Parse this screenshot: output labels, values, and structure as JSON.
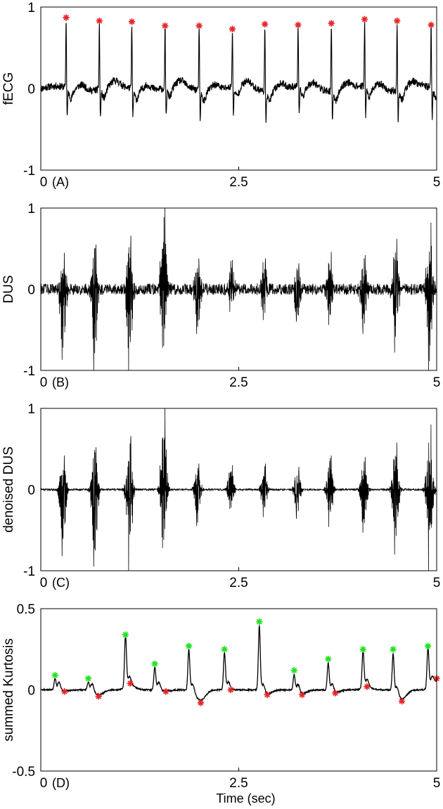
{
  "figure": {
    "xlabel_bottom": "Time (sec)"
  },
  "chart_data": [
    {
      "type": "line",
      "panel_label": "(A)",
      "ylabel": "fECG",
      "xlim": [
        0,
        5
      ],
      "ylim": [
        -1,
        1
      ],
      "xticks": [
        0,
        2.5,
        5
      ],
      "yticks": [
        -1,
        0,
        1
      ],
      "xtick_labels": [
        "0",
        "2.5",
        "5"
      ],
      "ytick_labels": [
        "-1",
        "0",
        "1"
      ],
      "signal_color": "#000000",
      "series": [
        {
          "marker": "asterisk",
          "color": "#e8262a",
          "x": [
            0.32,
            0.74,
            1.15,
            1.57,
            2.0,
            2.42,
            2.83,
            3.25,
            3.67,
            4.09,
            4.5,
            4.93
          ],
          "values": [
            0.87,
            0.83,
            0.82,
            0.77,
            0.77,
            0.73,
            0.79,
            0.78,
            0.8,
            0.85,
            0.83,
            0.78
          ]
        }
      ]
    },
    {
      "type": "line",
      "panel_label": "(B)",
      "ylabel": "DUS",
      "xlim": [
        0,
        5
      ],
      "ylim": [
        -1,
        1
      ],
      "xticks": [
        0,
        2.5,
        5
      ],
      "yticks": [
        -1,
        0,
        1
      ],
      "xtick_labels": [
        "0",
        "2.5",
        "5"
      ],
      "ytick_labels": [
        "-1",
        "0",
        "1"
      ],
      "signal_color": "#000000",
      "bursts": [
        {
          "x": 0.28,
          "pos": 0.45,
          "neg": -0.87
        },
        {
          "x": 0.68,
          "pos": 0.55,
          "neg": -1.0
        },
        {
          "x": 1.12,
          "pos": 0.66,
          "neg": -1.0
        },
        {
          "x": 1.55,
          "pos": 1.0,
          "neg": -0.72
        },
        {
          "x": 1.98,
          "pos": 0.38,
          "neg": -0.55
        },
        {
          "x": 2.4,
          "pos": 0.36,
          "neg": -0.28
        },
        {
          "x": 2.82,
          "pos": 0.38,
          "neg": -0.38
        },
        {
          "x": 3.24,
          "pos": 0.32,
          "neg": -0.4
        },
        {
          "x": 3.65,
          "pos": 0.46,
          "neg": -0.44
        },
        {
          "x": 4.08,
          "pos": 0.42,
          "neg": -0.55
        },
        {
          "x": 4.48,
          "pos": 0.62,
          "neg": -0.78
        },
        {
          "x": 4.91,
          "pos": 0.82,
          "neg": -1.0
        }
      ]
    },
    {
      "type": "line",
      "panel_label": "(C)",
      "ylabel": "denoised DUS",
      "xlim": [
        0,
        5
      ],
      "ylim": [
        -1,
        1
      ],
      "xticks": [
        0,
        2.5,
        5
      ],
      "yticks": [
        -1,
        0,
        1
      ],
      "xtick_labels": [
        "0",
        "2.5",
        "5"
      ],
      "ytick_labels": [
        "-1",
        "0",
        "1"
      ],
      "signal_color": "#000000",
      "bursts": [
        {
          "x": 0.28,
          "pos": 0.42,
          "neg": -0.82
        },
        {
          "x": 0.68,
          "pos": 0.52,
          "neg": -0.95
        },
        {
          "x": 1.12,
          "pos": 0.66,
          "neg": -1.0
        },
        {
          "x": 1.55,
          "pos": 1.0,
          "neg": -0.72
        },
        {
          "x": 1.98,
          "pos": 0.32,
          "neg": -0.45
        },
        {
          "x": 2.4,
          "pos": 0.3,
          "neg": -0.24
        },
        {
          "x": 2.82,
          "pos": 0.32,
          "neg": -0.34
        },
        {
          "x": 3.24,
          "pos": 0.28,
          "neg": -0.36
        },
        {
          "x": 3.65,
          "pos": 0.42,
          "neg": -0.46
        },
        {
          "x": 4.08,
          "pos": 0.4,
          "neg": -0.53
        },
        {
          "x": 4.48,
          "pos": 0.58,
          "neg": -0.8
        },
        {
          "x": 4.91,
          "pos": 0.8,
          "neg": -1.0
        }
      ]
    },
    {
      "type": "line",
      "panel_label": "(D)",
      "ylabel": "summed Kurtosis",
      "xlabel": "Time (sec)",
      "xlim": [
        0,
        5
      ],
      "ylim": [
        -0.5,
        0.5
      ],
      "xticks": [
        0,
        2.5,
        5
      ],
      "yticks": [
        -0.5,
        0,
        0.5
      ],
      "xtick_labels": [
        "0",
        "2.5",
        "5"
      ],
      "ytick_labels": [
        "-0.5",
        "0",
        "0.5"
      ],
      "signal_color": "#000000",
      "series": [
        {
          "marker": "asterisk",
          "color": "#1fe41f",
          "x": [
            0.18,
            0.6,
            1.07,
            1.44,
            1.87,
            2.32,
            2.76,
            3.2,
            3.63,
            4.07,
            4.45,
            4.89
          ],
          "values": [
            0.09,
            0.07,
            0.34,
            0.16,
            0.27,
            0.25,
            0.42,
            0.12,
            0.19,
            0.25,
            0.25,
            0.27
          ]
        },
        {
          "marker": "asterisk",
          "color": "#e8262a",
          "x": [
            0.3,
            0.73,
            1.13,
            1.58,
            2.02,
            2.4,
            2.86,
            3.3,
            3.72,
            4.12,
            4.56,
            5.0
          ],
          "values": [
            -0.01,
            -0.04,
            0.04,
            -0.01,
            -0.08,
            0.0,
            -0.03,
            -0.03,
            -0.02,
            0.02,
            -0.07,
            0.07
          ]
        }
      ]
    }
  ]
}
